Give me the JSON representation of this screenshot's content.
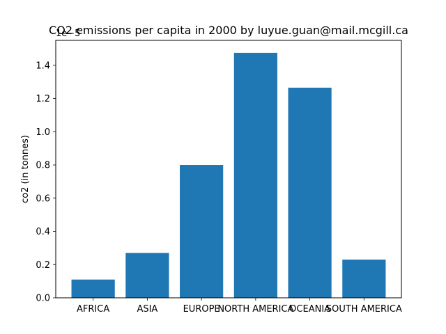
{
  "chart_data": {
    "type": "bar",
    "title": "CO2 emissions per capita in 2000 by luyue.guan@mail.mcgill.ca",
    "xlabel": "",
    "ylabel": "co2 (in tonnes)",
    "offset_label": "1e−5",
    "categories": [
      "AFRICA",
      "ASIA",
      "EUROPE",
      "NORTH AMERICA",
      "OCEANIA",
      "SOUTH AMERICA"
    ],
    "values": [
      0.11,
      0.27,
      0.8,
      1.475,
      1.265,
      0.23
    ],
    "value_scale": "1e-5",
    "ylim": [
      0,
      1.55
    ],
    "yticks": [
      0.0,
      0.2,
      0.4,
      0.6,
      0.8,
      1.0,
      1.2,
      1.4
    ],
    "ytick_labels": [
      "0.0",
      "0.2",
      "0.4",
      "0.6",
      "0.8",
      "1.0",
      "1.2",
      "1.4"
    ],
    "grid": false,
    "legend": "none",
    "bar_color": "#1f77b4"
  }
}
